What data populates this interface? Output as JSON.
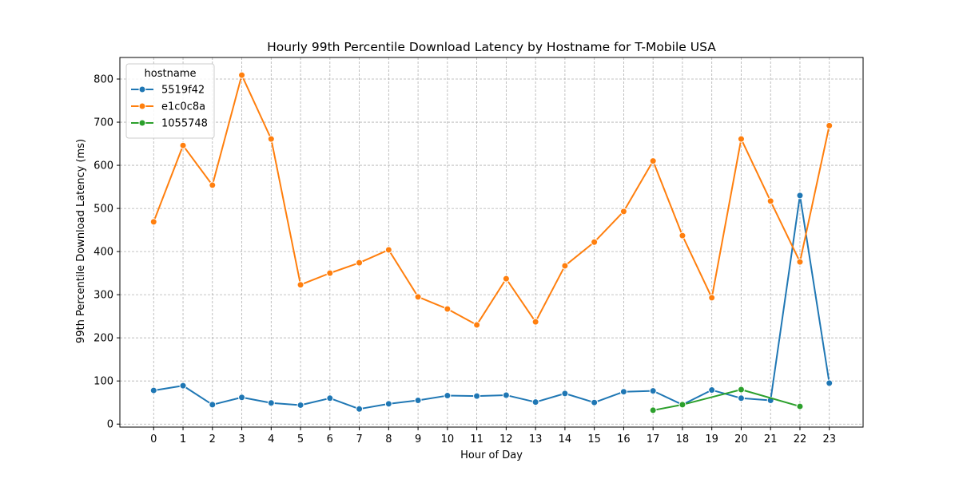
{
  "chart_data": {
    "type": "line",
    "title": "Hourly 99th Percentile Download Latency by Hostname for T-Mobile USA",
    "xlabel": "Hour of Day",
    "ylabel": "99th Percentile Download Latency (ms)",
    "x": [
      0,
      1,
      2,
      3,
      4,
      5,
      6,
      7,
      8,
      9,
      10,
      11,
      12,
      13,
      14,
      15,
      16,
      17,
      18,
      19,
      20,
      21,
      22,
      23
    ],
    "xlim": [
      -1.15,
      24.15
    ],
    "ylim": [
      -7,
      850
    ],
    "yticks": [
      0,
      100,
      200,
      300,
      400,
      500,
      600,
      700,
      800
    ],
    "grid": true,
    "grid_style": "dashed",
    "legend": {
      "title": "hostname",
      "placement": "top-left"
    },
    "series": [
      {
        "name": "5519f42",
        "color": "#1f77b4",
        "points": [
          [
            0,
            78
          ],
          [
            1,
            89
          ],
          [
            2,
            45
          ],
          [
            3,
            62
          ],
          [
            4,
            49
          ],
          [
            5,
            44
          ],
          [
            6,
            60
          ],
          [
            7,
            35
          ],
          [
            8,
            47
          ],
          [
            9,
            55
          ],
          [
            10,
            66
          ],
          [
            11,
            65
          ],
          [
            12,
            67
          ],
          [
            13,
            51
          ],
          [
            14,
            71
          ],
          [
            15,
            50
          ],
          [
            16,
            75
          ],
          [
            17,
            77
          ],
          [
            18,
            45
          ],
          [
            19,
            79
          ],
          [
            20,
            60
          ],
          [
            21,
            55
          ],
          [
            22,
            530
          ],
          [
            23,
            95
          ]
        ]
      },
      {
        "name": "e1c0c8a",
        "color": "#ff7f0e",
        "points": [
          [
            0,
            469
          ],
          [
            1,
            646
          ],
          [
            2,
            554
          ],
          [
            3,
            809
          ],
          [
            4,
            661
          ],
          [
            5,
            323
          ],
          [
            6,
            350
          ],
          [
            7,
            374
          ],
          [
            8,
            404
          ],
          [
            9,
            295
          ],
          [
            10,
            267
          ],
          [
            11,
            230
          ],
          [
            12,
            337
          ],
          [
            13,
            237
          ],
          [
            14,
            367
          ],
          [
            15,
            422
          ],
          [
            16,
            493
          ],
          [
            17,
            610
          ],
          [
            18,
            437
          ],
          [
            19,
            293
          ],
          [
            20,
            661
          ],
          [
            21,
            517
          ],
          [
            22,
            376
          ],
          [
            23,
            692
          ]
        ]
      },
      {
        "name": "1055748",
        "color": "#2ca02c",
        "points": [
          [
            17,
            32
          ],
          [
            18,
            45
          ],
          [
            20,
            80
          ],
          [
            22,
            41
          ]
        ]
      }
    ]
  }
}
